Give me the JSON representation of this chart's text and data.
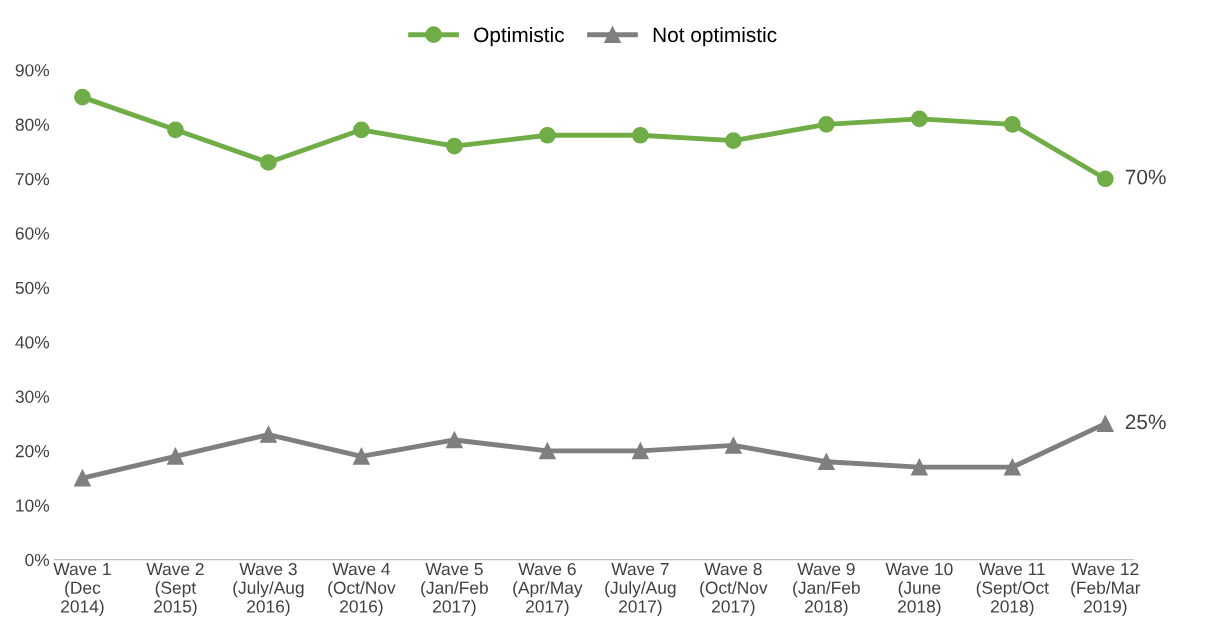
{
  "chart_data": {
    "type": "line",
    "categories": [
      "Wave 1\n(Dec\n2014)",
      "Wave 2\n(Sept\n2015)",
      "Wave 3\n(July/Aug\n2016)",
      "Wave 4\n(Oct/Nov\n2016)",
      "Wave 5\n(Jan/Feb\n2017)",
      "Wave 6\n(Apr/May\n2017)",
      "Wave 7\n(July/Aug\n2017)",
      "Wave 8\n(Oct/Nov\n2017)",
      "Wave 9\n(Jan/Feb\n2018)",
      "Wave 10\n(June\n2018)",
      "Wave 11\n(Sept/Oct\n2018)",
      "Wave 12\n(Feb/Mar\n2019)"
    ],
    "series": [
      {
        "name": "Optimistic",
        "color": "#70ad47",
        "marker": "circle",
        "values": [
          85,
          79,
          73,
          79,
          76,
          78,
          78,
          77,
          80,
          81,
          80,
          70
        ],
        "value_labels": [
          null,
          null,
          null,
          null,
          null,
          null,
          null,
          null,
          null,
          null,
          null,
          "70%"
        ]
      },
      {
        "name": "Not optimistic",
        "color": "#7f7f7f",
        "marker": "triangle",
        "values": [
          15,
          19,
          23,
          19,
          22,
          20,
          20,
          21,
          18,
          17,
          17,
          25
        ],
        "value_labels": [
          null,
          null,
          null,
          null,
          null,
          null,
          null,
          null,
          null,
          null,
          null,
          "25%"
        ]
      }
    ],
    "ylim": [
      0,
      90
    ],
    "yticks": [
      {
        "value": 0,
        "label": "0%"
      },
      {
        "value": 10,
        "label": "10%"
      },
      {
        "value": 20,
        "label": "20%"
      },
      {
        "value": 30,
        "label": "30%"
      },
      {
        "value": 40,
        "label": "40%"
      },
      {
        "value": 50,
        "label": "50%"
      },
      {
        "value": 60,
        "label": "60%"
      },
      {
        "value": 70,
        "label": "70%"
      },
      {
        "value": 80,
        "label": "80%"
      },
      {
        "value": 90,
        "label": "90%"
      }
    ],
    "grid": false,
    "legend": "top",
    "line_style": "solid"
  }
}
